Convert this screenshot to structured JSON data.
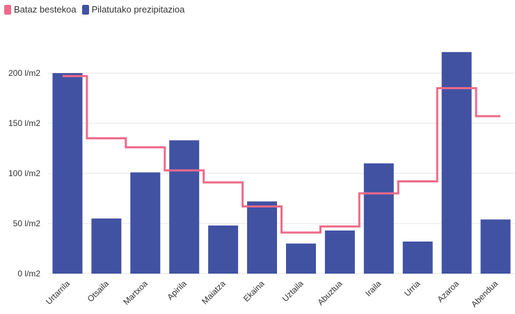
{
  "legend": {
    "average_label": "Bataz bestekoa",
    "cumulative_label": "Pilatutako prezipitazioa"
  },
  "colors": {
    "bar": "#4152a3",
    "line": "#ef6a8a",
    "grid": "#e6e6e6"
  },
  "chart_data": {
    "type": "bar",
    "categories": [
      "Urtarrila",
      "Otsaila",
      "Martxoa",
      "Apirila",
      "Maiatza",
      "Ekaina",
      "Uztaila",
      "Abuztua",
      "Iraila",
      "Urria",
      "Azaroa",
      "Abendua"
    ],
    "y_tick_labels": [
      "0 l/m2",
      "50 l/m2",
      "100 l/m2",
      "150 l/m2",
      "200 l/m2"
    ],
    "ylim": [
      0,
      250
    ],
    "grid": true,
    "legend_position": "top-left",
    "series": [
      {
        "name": "Pilatutako prezipitazioa",
        "kind": "bar",
        "values": [
          200,
          55,
          101,
          133,
          48,
          72,
          30,
          43,
          110,
          32,
          221,
          54
        ]
      },
      {
        "name": "Bataz bestekoa",
        "kind": "step-line",
        "values": [
          197,
          135,
          126,
          103,
          91,
          67,
          41,
          47,
          80,
          92,
          185,
          157
        ]
      }
    ]
  }
}
